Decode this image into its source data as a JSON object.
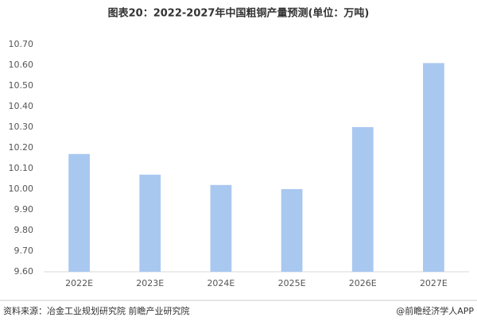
{
  "chart_data": {
    "type": "bar",
    "title": "图表20：2022-2027年中国粗铜产量预测(单位：万吨)",
    "categories": [
      "2022E",
      "2023E",
      "2024E",
      "2025E",
      "2026E",
      "2027E"
    ],
    "values": [
      10.17,
      10.07,
      10.02,
      10.0,
      10.3,
      10.61
    ],
    "color": "#a9c8f0",
    "ylim": [
      9.6,
      10.7
    ],
    "yticks": [
      {
        "value": 9.6,
        "label": "9.60"
      },
      {
        "value": 9.7,
        "label": "9.70"
      },
      {
        "value": 9.8,
        "label": "9.80"
      },
      {
        "value": 9.9,
        "label": "9.90"
      },
      {
        "value": 10.0,
        "label": "10.00"
      },
      {
        "value": 10.1,
        "label": "10.10"
      },
      {
        "value": 10.2,
        "label": "10.20"
      },
      {
        "value": 10.3,
        "label": "10.30"
      },
      {
        "value": 10.4,
        "label": "10.40"
      },
      {
        "value": 10.5,
        "label": "10.50"
      },
      {
        "value": 10.6,
        "label": "10.60"
      },
      {
        "value": 10.7,
        "label": "10.70"
      }
    ],
    "grid": false,
    "source": "资料来源：冶金工业规划研究院 前瞻产业研究院",
    "credit": "@前瞻经济学人APP"
  }
}
